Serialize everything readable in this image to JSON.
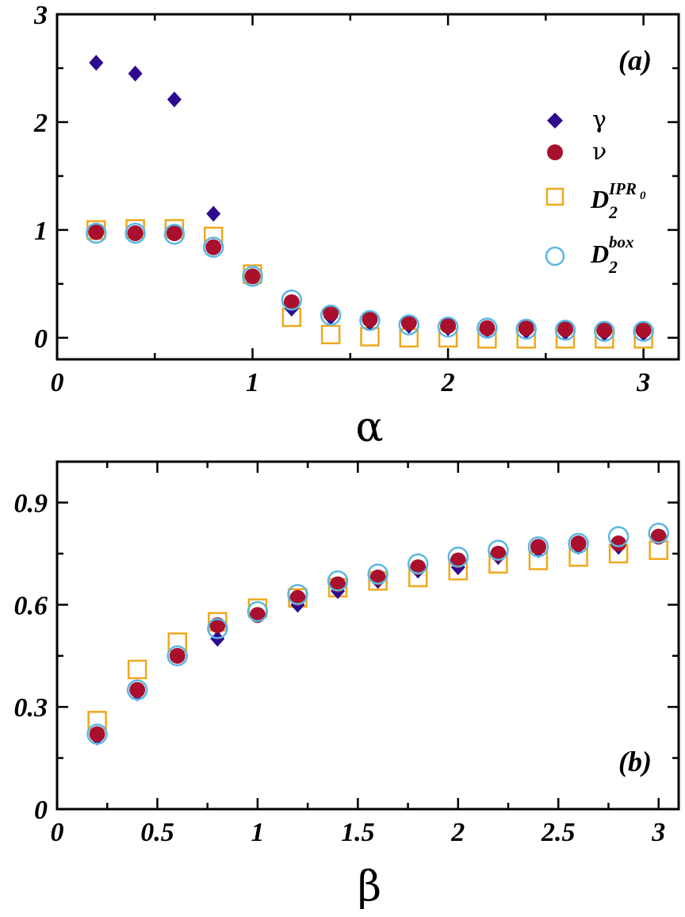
{
  "chart_data": [
    {
      "type": "scatter",
      "panel_label": "(a)",
      "xlabel": "α",
      "ylabel": "",
      "xlim": [
        0,
        3.18
      ],
      "ylim": [
        -0.2,
        3.0
      ],
      "xticks": [
        0,
        1,
        2,
        3
      ],
      "xtick_labels": [
        "0",
        "1",
        "2",
        "3"
      ],
      "yticks": [
        0,
        1,
        2,
        3
      ],
      "ytick_labels": [
        "0",
        "1",
        "2",
        "3"
      ],
      "grid": false,
      "legend_position": "top-right",
      "x": [
        0.2,
        0.4,
        0.6,
        0.8,
        1.0,
        1.2,
        1.4,
        1.6,
        1.8,
        2.0,
        2.2,
        2.4,
        2.6,
        2.8,
        3.0
      ],
      "series": [
        {
          "name": "γ",
          "marker": "diamond",
          "color": "#2e0a8f",
          "values": [
            2.55,
            2.45,
            2.21,
            1.15,
            0.57,
            0.27,
            0.19,
            0.14,
            0.11,
            0.09,
            0.07,
            0.06,
            0.05,
            0.04,
            0.04
          ]
        },
        {
          "name": "ν",
          "marker": "filled-circle",
          "color": "#a8102e",
          "values": [
            0.98,
            0.97,
            0.97,
            0.84,
            0.57,
            0.33,
            0.23,
            0.17,
            0.14,
            0.11,
            0.09,
            0.09,
            0.08,
            0.07,
            0.07
          ]
        },
        {
          "name": "D2 IPR0",
          "marker": "open-square",
          "color": "#f0a81c",
          "values": [
            1.0,
            1.01,
            1.01,
            0.94,
            0.59,
            0.19,
            0.03,
            0.01,
            0.0,
            0.0,
            -0.01,
            -0.01,
            -0.01,
            -0.01,
            -0.01
          ]
        },
        {
          "name": "D2 box",
          "marker": "open-circle",
          "color": "#5ab7e4",
          "values": [
            0.97,
            0.97,
            0.96,
            0.84,
            0.57,
            0.35,
            0.21,
            0.16,
            0.12,
            0.1,
            0.09,
            0.08,
            0.07,
            0.06,
            0.06
          ]
        }
      ]
    },
    {
      "type": "scatter",
      "panel_label": "(b)",
      "xlabel": "β",
      "ylabel": "",
      "xlim": [
        0,
        3.1
      ],
      "ylim": [
        0,
        1.02
      ],
      "xticks": [
        0,
        0.5,
        1,
        1.5,
        2,
        2.5,
        3
      ],
      "xtick_labels": [
        "0",
        "0.5",
        "1",
        "1.5",
        "2",
        "2.5",
        "3"
      ],
      "yticks": [
        0,
        0.3,
        0.6,
        0.9
      ],
      "ytick_labels": [
        "0",
        "0.3",
        "0.6",
        "0.9"
      ],
      "grid": false,
      "x": [
        0.2,
        0.4,
        0.6,
        0.8,
        1.0,
        1.2,
        1.4,
        1.6,
        1.8,
        2.0,
        2.2,
        2.4,
        2.6,
        2.8,
        3.0
      ],
      "series": [
        {
          "name": "γ",
          "marker": "diamond",
          "color": "#2e0a8f",
          "values": [
            0.21,
            0.34,
            0.45,
            0.5,
            0.57,
            0.6,
            0.64,
            0.67,
            0.7,
            0.71,
            0.74,
            0.76,
            0.77,
            0.77,
            0.8
          ]
        },
        {
          "name": "ν",
          "marker": "filled-circle",
          "color": "#a8102e",
          "values": [
            0.22,
            0.35,
            0.45,
            0.54,
            0.57,
            0.62,
            0.66,
            0.68,
            0.71,
            0.73,
            0.75,
            0.77,
            0.78,
            0.78,
            0.8
          ]
        },
        {
          "name": "D2 IPR0",
          "marker": "open-square",
          "color": "#f0a81c",
          "values": [
            0.26,
            0.41,
            0.49,
            0.55,
            0.59,
            0.62,
            0.65,
            0.67,
            0.68,
            0.7,
            0.72,
            0.73,
            0.74,
            0.75,
            0.76
          ]
        },
        {
          "name": "D2 box",
          "marker": "open-circle",
          "color": "#5ab7e4",
          "values": [
            0.22,
            0.35,
            0.45,
            0.53,
            0.58,
            0.63,
            0.67,
            0.69,
            0.72,
            0.74,
            0.76,
            0.77,
            0.78,
            0.8,
            0.81
          ]
        }
      ]
    }
  ],
  "legend": {
    "gamma": "γ",
    "nu": "ν",
    "d2ipr_base": "D",
    "d2ipr_sub": "2",
    "d2ipr_sup": "IPR",
    "d2ipr_sup_sub": "0",
    "d2box_base": "D",
    "d2box_sub": "2",
    "d2box_sup": "box"
  }
}
